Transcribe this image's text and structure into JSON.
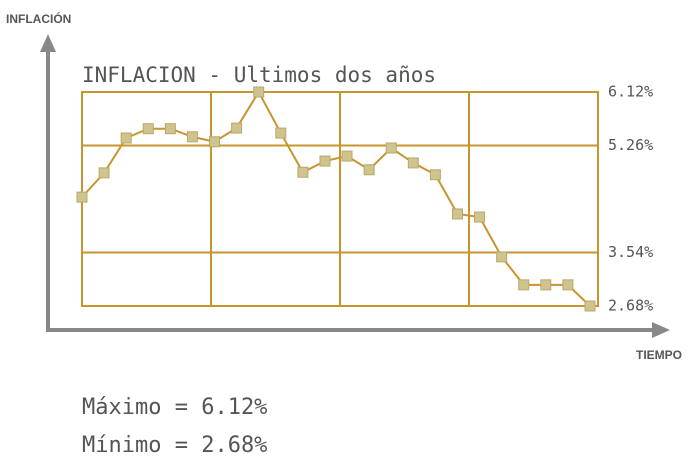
{
  "chart_data": {
    "type": "line",
    "title": "INFLACION - Ultimos dos años",
    "y_axis_label": "INFLACIÓN",
    "x_axis_label": "TIEMPO",
    "annotations": [
      "Máximo = 6.12%",
      "Mínimo = 2.68%"
    ],
    "categories": [
      null,
      null,
      null,
      null,
      null,
      null,
      null,
      null,
      null,
      null,
      null,
      null,
      null,
      null,
      null,
      null,
      null,
      null,
      null,
      null,
      null,
      null,
      null,
      null
    ],
    "series": [
      {
        "color": "#c8942c",
        "values": [
          4.43,
          4.82,
          5.38,
          5.53,
          5.53,
          5.4,
          5.32,
          5.54,
          6.12,
          5.46,
          4.83,
          5.01,
          5.09,
          4.87,
          5.22,
          4.98,
          4.79,
          4.16,
          4.11,
          3.47,
          3.02,
          3.02,
          3.02,
          2.68
        ]
      }
    ],
    "ylim": [
      2.68,
      6.12
    ],
    "yticks": [
      {
        "value": 6.12,
        "label": "6.12%"
      },
      {
        "value": 5.26,
        "label": "5.26%"
      },
      {
        "value": 3.54,
        "label": "3.54%"
      },
      {
        "value": 2.68,
        "label": "2.68%"
      }
    ],
    "grid": true
  }
}
